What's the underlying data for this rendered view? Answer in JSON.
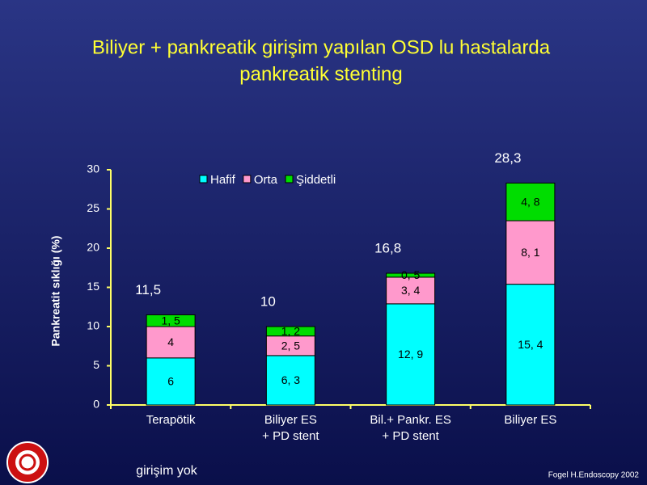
{
  "chart_data": {
    "type": "stacked-bar",
    "title": [
      "Biliyer + pankreatik girişim yapılan OSD lu hastalarda",
      "pankreatik stenting"
    ],
    "y_label": "Pankreatit sıklığı (%)",
    "categories": [
      [
        "Terapötik"
      ],
      [
        "Biliyer ES",
        "+ PD stent"
      ],
      [
        "Bil.+ Pankr. ES",
        "+ PD stent"
      ],
      [
        "Biliyer ES"
      ]
    ],
    "series": [
      {
        "name": "Hafif",
        "color": "#00ffff",
        "values": [
          6,
          6.3,
          12.9,
          15.4
        ],
        "value_labels": [
          "6",
          "6, 3",
          "12, 9",
          "15, 4"
        ]
      },
      {
        "name": "Orta",
        "color": "#ff99cc",
        "values": [
          4,
          2.5,
          3.4,
          8.1
        ],
        "value_labels": [
          "4",
          "2, 5",
          "3, 4",
          "8, 1"
        ]
      },
      {
        "name": "Şiddetli",
        "color": "#00dd00",
        "values": [
          1.5,
          1.2,
          0.5,
          4.8
        ],
        "value_labels": [
          "1, 5",
          "1, 2",
          "0, 5",
          "4, 8"
        ]
      }
    ],
    "totals": {
      "values": [
        11.5,
        10,
        16.8,
        28.3
      ],
      "value_labels": [
        "11,5",
        "10",
        "16,8",
        "28,3"
      ]
    },
    "ylim": [
      0,
      30
    ],
    "yticks": [
      0,
      5,
      10,
      15,
      20,
      25,
      30
    ],
    "annotation": "girişim yok",
    "source": "Fogel H.Endoscopy 2002"
  }
}
